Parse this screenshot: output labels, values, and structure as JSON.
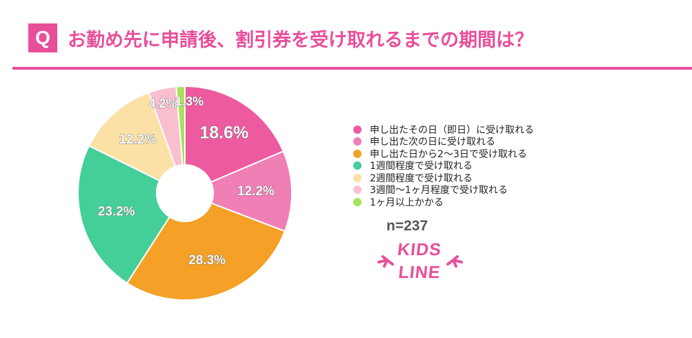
{
  "header": {
    "badge": "Q",
    "title": "お勤め先に申請後、割引券を受け取れるまでの期間は？"
  },
  "chart_data": {
    "type": "pie",
    "donut": true,
    "sample_size": "n=237",
    "slices": [
      {
        "label": "申し出たその日（即日）に受け取れる",
        "value": 18.6,
        "display": "18.6%",
        "color": "#ee5a9f"
      },
      {
        "label": "申し出た次の日に受け取れる",
        "value": 12.2,
        "display": "12.2%",
        "color": "#f07fb6"
      },
      {
        "label": "申し出た日から2〜3日で受け取れる",
        "value": 28.3,
        "display": "28.3%",
        "color": "#f5a026"
      },
      {
        "label": "1週間程度で受け取れる",
        "value": 23.2,
        "display": "23.2%",
        "color": "#44cf98"
      },
      {
        "label": "2週間程度で受け取れる",
        "value": 12.2,
        "display": "12.2%",
        "color": "#fbe1a6"
      },
      {
        "label": "3週間〜1ヶ月程度で受け取れる",
        "value": 4.2,
        "display": "4.2%",
        "color": "#f9bfcf"
      },
      {
        "label": "1ヶ月以上かかる",
        "value": 1.3,
        "display": "1.3%",
        "color": "#a8e25a"
      }
    ],
    "legend_position": "right"
  },
  "logo": {
    "line1": "KIDS",
    "line2": "LINE",
    "color": "#e84f9a"
  }
}
